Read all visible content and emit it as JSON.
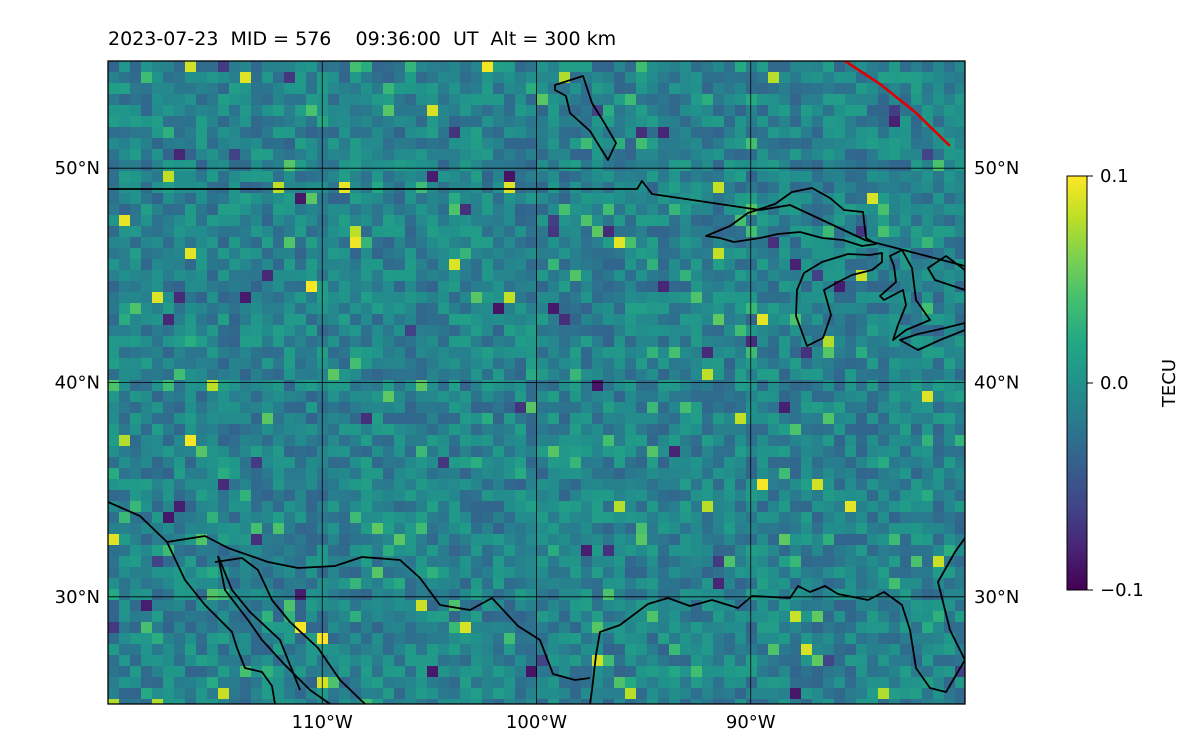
{
  "title": "2023-07-23  MID = 576    09:36:00  UT  Alt = 300 km",
  "colormap": "viridis",
  "map": {
    "lon_range": [
      -120,
      -80
    ],
    "lat_range": [
      25,
      55
    ],
    "lat_ticks": [
      {
        "value": 30,
        "label": "30°N"
      },
      {
        "value": 40,
        "label": "40°N"
      },
      {
        "value": 50,
        "label": "50°N"
      }
    ],
    "lon_ticks": [
      {
        "value": -110,
        "label": "110°W"
      },
      {
        "value": -100,
        "label": "100°W"
      },
      {
        "value": -90,
        "label": "90°W"
      }
    ],
    "terminator_color": "#e00000"
  },
  "colorbar": {
    "label": "TECU",
    "min": -0.1,
    "max": 0.1,
    "ticks": [
      {
        "value": 0.1,
        "label": "0.1"
      },
      {
        "value": 0.0,
        "label": "0.0"
      },
      {
        "value": -0.1,
        "label": "−0.1"
      }
    ]
  }
}
